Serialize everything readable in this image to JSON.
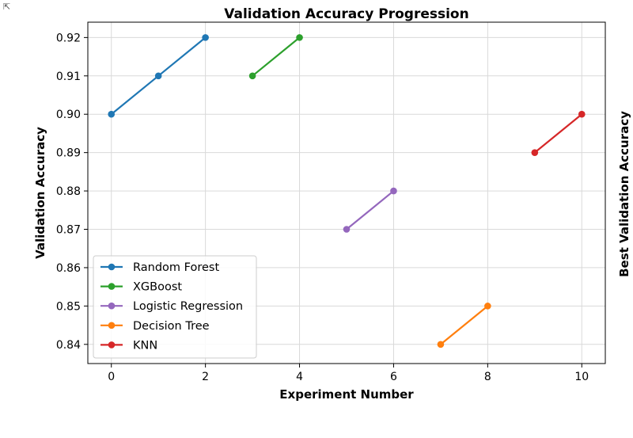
{
  "chart_data": {
    "type": "line",
    "title": "Validation Accuracy Progression",
    "xlabel": "Experiment Number",
    "ylabel": "Validation Accuracy",
    "ylabel_right": "Best Validation Accuracy",
    "xlim": [
      -0.5,
      10.5
    ],
    "ylim": [
      0.835,
      0.924
    ],
    "x_ticks": [
      0,
      2,
      4,
      6,
      8,
      10
    ],
    "x_tick_labels": [
      "0",
      "2",
      "4",
      "6",
      "8",
      "10"
    ],
    "y_ticks": [
      0.84,
      0.85,
      0.86,
      0.87,
      0.88,
      0.89,
      0.9,
      0.91,
      0.92
    ],
    "y_tick_labels": [
      "0.84",
      "0.85",
      "0.86",
      "0.87",
      "0.88",
      "0.89",
      "0.90",
      "0.91",
      "0.92"
    ],
    "grid": true,
    "legend_position": "lower-left",
    "series": [
      {
        "name": "Random Forest",
        "color": "#1f77b4",
        "x": [
          0,
          1,
          2
        ],
        "y": [
          0.9,
          0.91,
          0.92
        ]
      },
      {
        "name": "XGBoost",
        "color": "#2ca02c",
        "x": [
          3,
          4
        ],
        "y": [
          0.91,
          0.92
        ]
      },
      {
        "name": "Logistic Regression",
        "color": "#9467bd",
        "x": [
          5,
          6
        ],
        "y": [
          0.87,
          0.88
        ]
      },
      {
        "name": "Decision Tree",
        "color": "#ff7f0e",
        "x": [
          7,
          8
        ],
        "y": [
          0.84,
          0.85
        ]
      },
      {
        "name": "KNN",
        "color": "#d62728",
        "x": [
          9,
          10
        ],
        "y": [
          0.89,
          0.9
        ]
      }
    ]
  }
}
